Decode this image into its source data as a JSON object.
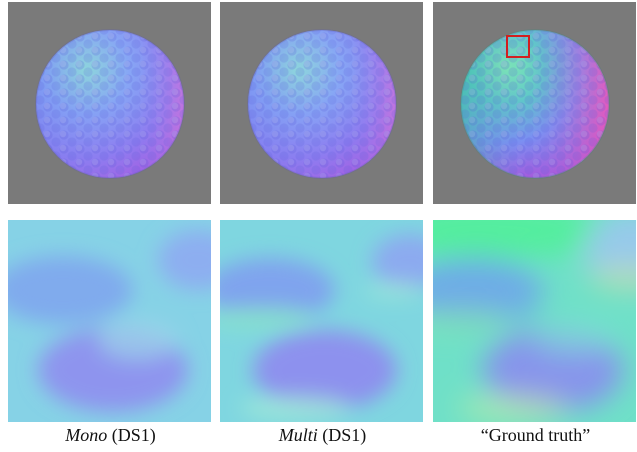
{
  "captions": [
    {
      "method": "Mono",
      "suffix": " (DS1)"
    },
    {
      "method": "Multi",
      "suffix": " (DS1)"
    },
    {
      "method": "",
      "suffix": "“Ground truth”"
    }
  ]
}
